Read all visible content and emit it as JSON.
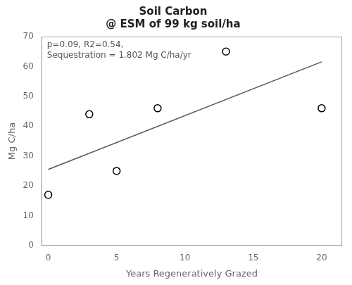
{
  "chart_data": {
    "type": "scatter",
    "title": "Soil Carbon\n@ ESM of 99 kg soil/ha",
    "xlabel": "Years Regeneratively Grazed",
    "ylabel": "Mg C/ha",
    "annotation": "p=0.09, R2=0.54,\nSequestration = 1.802 Mg C/ha/yr",
    "series": [
      {
        "type": "line",
        "x": [
          0,
          20
        ],
        "values": [
          25.5,
          61.54
        ],
        "color": "#555555",
        "line_style": "solid"
      },
      {
        "type": "scatter",
        "x": [
          0,
          3,
          5,
          8,
          13,
          20
        ],
        "values": [
          17,
          44,
          25,
          46,
          65,
          46
        ],
        "color": "black",
        "marker": "open circle"
      }
    ],
    "xlim": [
      -0.5,
      21.5
    ],
    "ylim": [
      0,
      70
    ],
    "xticks": [
      0,
      5,
      10,
      15,
      20
    ],
    "yticks": [
      0,
      10,
      20,
      30,
      40,
      50,
      60,
      70
    ],
    "grid": false
  }
}
